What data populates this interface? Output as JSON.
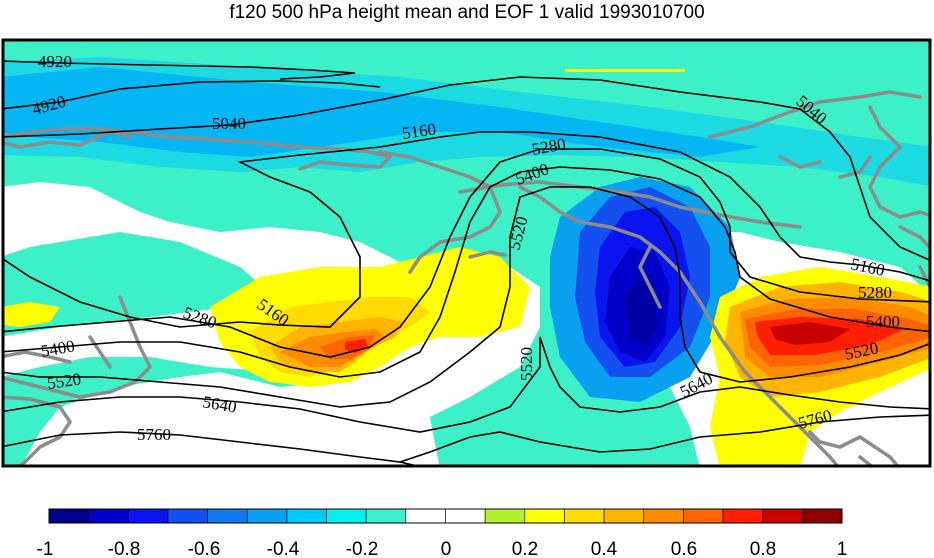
{
  "title": "f120 500 hPa height mean and EOF 1 valid 1993010700",
  "map": {
    "contour_labels": [
      "4920",
      "4920",
      "5040",
      "5040",
      "5160",
      "5160",
      "5160",
      "5280",
      "5280",
      "5280",
      "5400",
      "5400",
      "5400",
      "5520",
      "5520",
      "5520",
      "5520",
      "5640",
      "5640",
      "5760",
      "5760"
    ],
    "shading_field": "EOF 1",
    "contour_field": "500 hPa height mean"
  },
  "colorbar": {
    "tick_labels": [
      "-1",
      "-0.8",
      "-0.6",
      "-0.4",
      "-0.2",
      "0",
      "0.2",
      "0.4",
      "0.6",
      "0.8",
      "1"
    ],
    "colors": [
      "#00008c",
      "#0000c8",
      "#0a14f0",
      "#1450f0",
      "#1478f0",
      "#0aa0f0",
      "#00c8f8",
      "#00f0f0",
      "#3cf0c8",
      "#ffffff",
      "#ffffff",
      "#b4f032",
      "#ffff00",
      "#ffdc00",
      "#ffb400",
      "#ff8c00",
      "#ff6400",
      "#ff1e00",
      "#c80000",
      "#8c0000"
    ]
  }
}
